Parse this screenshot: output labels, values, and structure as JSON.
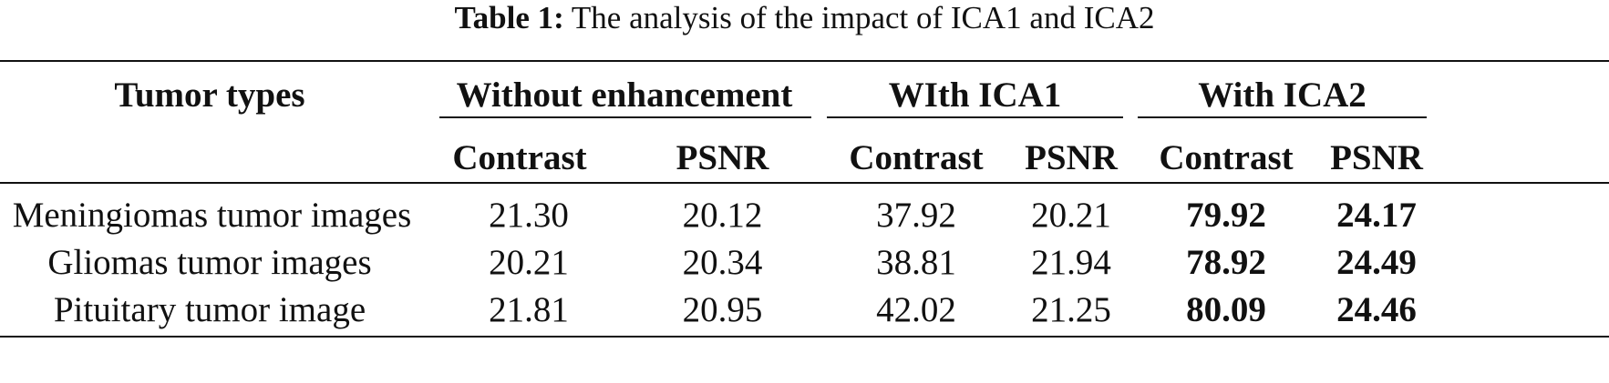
{
  "caption": {
    "label": "Table 1:",
    "text": "The analysis of the impact of ICA1 and ICA2"
  },
  "header": {
    "row_label": "Tumor types",
    "groups": [
      "Without enhancement",
      "WIth ICA1",
      "With ICA2"
    ],
    "subcolumns": [
      "Contrast",
      "PSNR",
      "Contrast",
      "PSNR",
      "Contrast",
      "PSNR"
    ]
  },
  "rows": [
    {
      "label": "Meningiomas tumor images",
      "values": [
        "21.30",
        "20.12",
        "37.92",
        "20.21",
        "79.92",
        "24.17"
      ]
    },
    {
      "label": "Gliomas tumor images",
      "values": [
        "20.21",
        "20.34",
        "38.81",
        "21.94",
        "78.92",
        "24.49"
      ]
    },
    {
      "label": "Pituitary tumor image",
      "values": [
        "21.81",
        "20.95",
        "42.02",
        "21.25",
        "80.09",
        "24.46"
      ]
    }
  ],
  "emphasis": {
    "bold_columns": [
      4,
      5
    ]
  }
}
